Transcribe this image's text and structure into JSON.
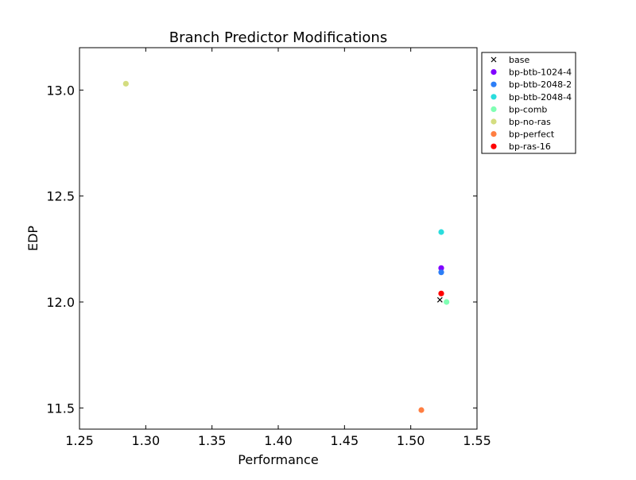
{
  "chart_data": {
    "type": "scatter",
    "title": "Branch Predictor Modifications",
    "xlabel": "Performance",
    "ylabel": "EDP",
    "xlim": [
      1.25,
      1.55
    ],
    "ylim": [
      11.4,
      13.2
    ],
    "xticks": [
      1.25,
      1.3,
      1.35,
      1.4,
      1.45,
      1.5,
      1.55
    ],
    "xtick_labels": [
      "1.25",
      "1.30",
      "1.35",
      "1.40",
      "1.45",
      "1.50",
      "1.55"
    ],
    "yticks": [
      11.5,
      12.0,
      12.5,
      13.0
    ],
    "ytick_labels": [
      "11.5",
      "12.0",
      "12.5",
      "13.0"
    ],
    "grid": false,
    "legend_position": "outside-top-right",
    "series": [
      {
        "name": "base",
        "marker": "x",
        "color": "#000000",
        "points": [
          [
            1.522,
            12.01
          ]
        ]
      },
      {
        "name": "bp-btb-1024-4",
        "marker": "circle",
        "color": "#8000ff",
        "points": [
          [
            1.523,
            12.16
          ]
        ]
      },
      {
        "name": "bp-btb-2048-2",
        "marker": "circle",
        "color": "#2c7ef7",
        "points": [
          [
            1.523,
            12.14
          ]
        ]
      },
      {
        "name": "bp-btb-2048-4",
        "marker": "circle",
        "color": "#2adddd",
        "points": [
          [
            1.523,
            12.33
          ]
        ]
      },
      {
        "name": "bp-comb",
        "marker": "circle",
        "color": "#80ffb4",
        "points": [
          [
            1.527,
            12.0
          ]
        ]
      },
      {
        "name": "bp-no-ras",
        "marker": "circle",
        "color": "#d4dd80",
        "points": [
          [
            1.285,
            13.03
          ]
        ]
      },
      {
        "name": "bp-perfect",
        "marker": "circle",
        "color": "#ff7e41",
        "points": [
          [
            1.508,
            11.49
          ]
        ]
      },
      {
        "name": "bp-ras-16",
        "marker": "circle",
        "color": "#ff0000",
        "points": [
          [
            1.523,
            12.04
          ]
        ]
      }
    ]
  }
}
